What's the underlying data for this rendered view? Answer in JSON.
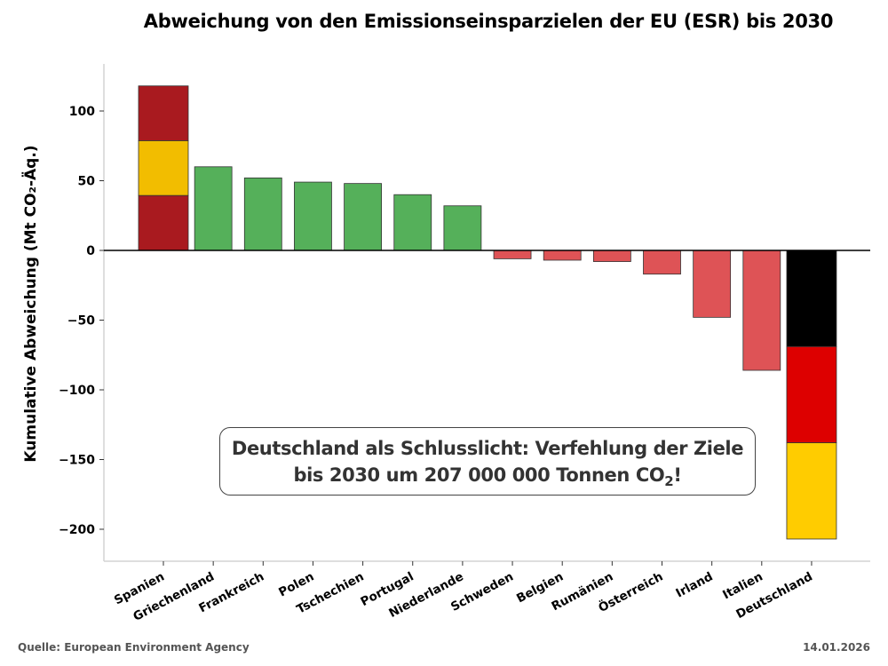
{
  "chart_data": {
    "type": "bar",
    "title": "Abweichung von den Emissionseinsparzielen der EU (ESR) bis 2030",
    "xlabel": "",
    "ylabel": "Kumulative Abweichung (Mt CO₂-Äq.)",
    "ylim": [
      -222,
      135
    ],
    "yticks": [
      100,
      50,
      0,
      -50,
      -100,
      -150,
      -200
    ],
    "ytick_labels": [
      "100",
      "50",
      "0",
      "−50",
      "−100",
      "−150",
      "−200"
    ],
    "grid": false,
    "categories": [
      "Spanien",
      "Griechenland",
      "Frankreich",
      "Polen",
      "Tschechien",
      "Portugal",
      "Niederlande",
      "Schweden",
      "Belgien",
      "Rumänien",
      "Österreich",
      "Irland",
      "Italien",
      "Deutschland"
    ],
    "values": [
      118,
      60,
      52,
      49,
      48,
      40,
      32,
      -6,
      -7,
      -8,
      -17,
      -48,
      -86,
      -207
    ],
    "bar_styles": [
      "flag-es",
      "positive",
      "positive",
      "positive",
      "positive",
      "positive",
      "positive",
      "negative",
      "negative",
      "negative",
      "negative",
      "negative",
      "negative",
      "flag-de"
    ],
    "colors": {
      "positive": "#55b05a",
      "negative": "#de5356",
      "flag_es": [
        "#a91a1f",
        "#f2bd00",
        "#a91a1f"
      ],
      "flag_de": [
        "#000000",
        "#dd0000",
        "#ffcc00"
      ]
    },
    "annotation": {
      "line1": "Deutschland als Schlusslicht: Verfehlung der Ziele",
      "line2_pre": "bis 2030 um 207 000 000 Tonnen CO",
      "line2_sub": "2",
      "line2_post": "!"
    }
  },
  "footer": {
    "source": "Quelle: European Environment Agency",
    "date": "14.01.2026"
  }
}
